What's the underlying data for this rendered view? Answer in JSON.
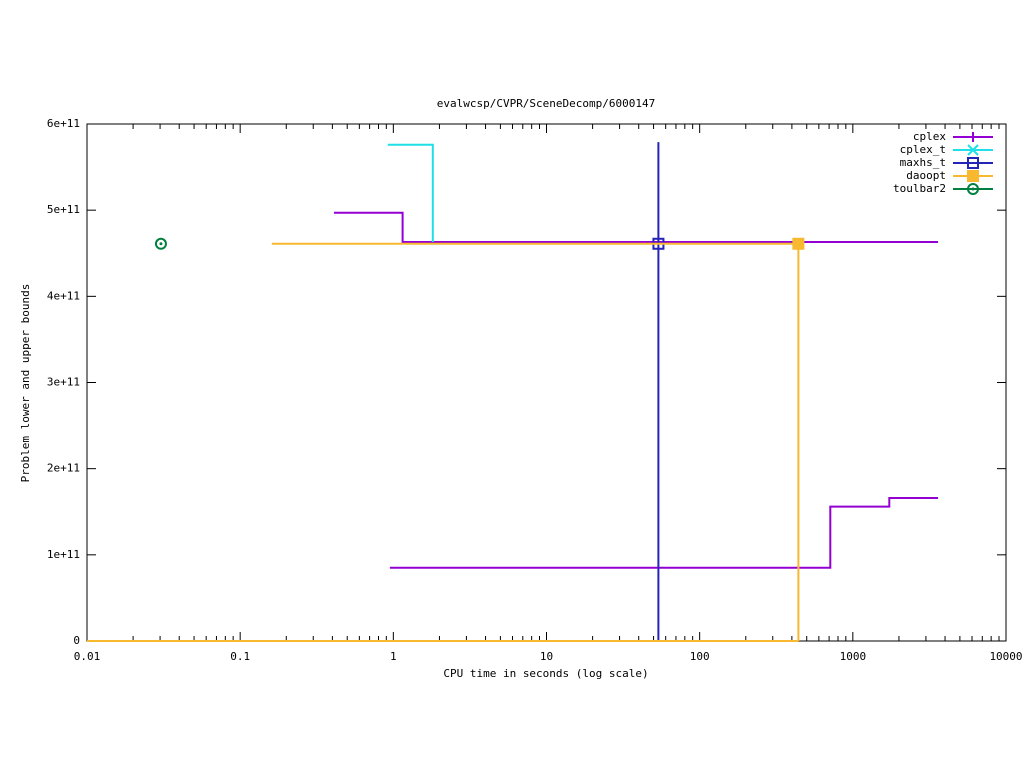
{
  "chart_data": {
    "type": "line",
    "title": "evalwcsp/CVPR/SceneDecomp/6000147",
    "xlabel": "CPU time in seconds (log scale)",
    "ylabel": "Problem lower and upper bounds",
    "xscale": "log",
    "xlim": [
      0.01,
      10000
    ],
    "xticks": [
      0.01,
      0.1,
      1,
      10,
      100,
      1000,
      10000
    ],
    "ylim": [
      0,
      600000000000
    ],
    "yticks": [
      0,
      {
        "value": 100000000000,
        "label": "1e+11"
      },
      {
        "value": 200000000000,
        "label": "2e+11"
      },
      {
        "value": 300000000000,
        "label": "3e+11"
      },
      {
        "value": 400000000000,
        "label": "4e+11"
      },
      {
        "value": 500000000000,
        "label": "5e+11"
      },
      {
        "value": 600000000000,
        "label": "6e+11"
      }
    ],
    "legend": "top-right",
    "series": [
      {
        "name": "cplex",
        "color": "#9400d3",
        "marker": "plus",
        "x": [
          0.41,
          1.15,
          1.15,
          3600,
          null,
          0.95,
          713,
          713,
          1730,
          1730,
          3600
        ],
        "values": [
          497000000000,
          497000000000,
          463000000000,
          463000000000,
          null,
          85000000000,
          85000000000,
          156000000000,
          156000000000,
          166000000000,
          166000000000
        ],
        "marker_x": [],
        "marker_values": []
      },
      {
        "name": "cplex_t",
        "color": "#1ee0e6",
        "marker": "cross",
        "x": [
          0.92,
          1.81,
          1.81
        ],
        "values": [
          576000000000,
          576000000000,
          463000000000
        ],
        "marker_x": [],
        "marker_values": []
      },
      {
        "name": "maxhs_t",
        "color": "#2424b8",
        "marker": "open-square",
        "x": [
          53.8,
          53.8
        ],
        "values": [
          579000000000,
          0
        ],
        "marker_x": [
          53.8
        ],
        "marker_values": [
          461000000000
        ]
      },
      {
        "name": "daoopt",
        "color": "#f8b830",
        "marker": "filled-square",
        "x": [
          0.161,
          441,
          441,
          null,
          0.01,
          441
        ],
        "values": [
          461000000000,
          461000000000,
          0,
          null,
          0,
          0
        ],
        "marker_x": [
          441
        ],
        "marker_values": [
          461000000000
        ]
      },
      {
        "name": "toulbar2",
        "color": "#008040",
        "marker": "dot-circle",
        "x": [],
        "values": [],
        "marker_x": [
          0.0304
        ],
        "marker_values": [
          461000000000
        ]
      }
    ]
  }
}
